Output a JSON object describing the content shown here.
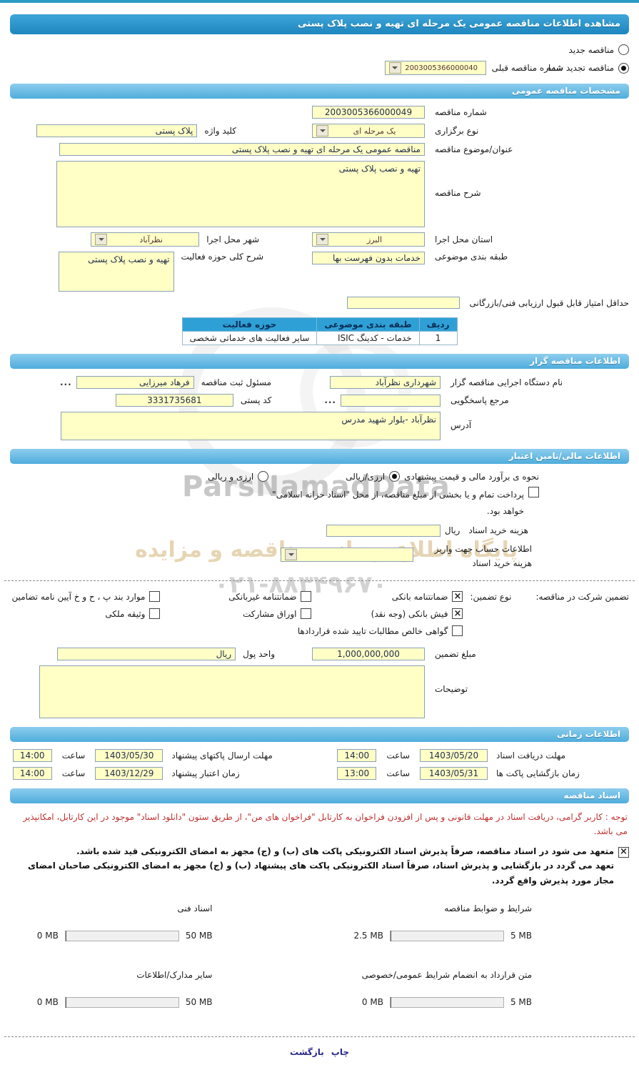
{
  "title": "مشاهده اطلاعات مناقصه عمومی یک مرحله ای تهیه و نصب پلاک پستی",
  "watermark": {
    "brand": "ParsNamadData",
    "line1": "پایگاه اطلاع رسانی مناقصه و مزایده",
    "phone": "۰۲۱-۸۸۳۴۹۶۷۰"
  },
  "top": {
    "new_label": "مناقصه جدید",
    "new_selected": false,
    "renewed_label": "مناقصه تجدید شده",
    "renewed_selected": true,
    "prev_number_label": "شماره مناقصه قبلی",
    "prev_number_value": "2003005366000040"
  },
  "sections": {
    "general": "مشخصات مناقصه عمومی",
    "tenderer": "اطلاعات مناقصه گزار",
    "financial": "اطلاعات مالی/تامین اعتبار",
    "timing": "اطلاعات زمانی",
    "documents": "اسناد مناقصه"
  },
  "general": {
    "tender_number_label": "شماره مناقصه",
    "tender_number_value": "2003005366000049",
    "holding_type_label": "نوع برگزاری",
    "holding_type_value": "یک مرحله ای",
    "keyword_label": "کلید واژه",
    "keyword_value": "پلاک پستی",
    "subject_label": "عنوان/موضوع مناقصه",
    "subject_value": "مناقصه عمومی یک مرحله ای تهیه و نصب پلاک پستی",
    "desc_label": "شرح مناقصه",
    "desc_value": "تهیه و نصب پلاک پستی",
    "province_label": "استان محل اجرا",
    "province_value": "البرز",
    "city_label": "شهر محل اجرا",
    "city_value": "نظرآباد",
    "category_label": "طبقه بندی موضوعی",
    "category_value": "خدمات بدون فهرست بها",
    "activity_label": "شرح کلی حوزه فعالیت",
    "activity_value": "تهیه و نصب پلاک پستی",
    "min_score_label": "حداقل امتیاز قابل قبول ارزیابی فنی/بازرگانی",
    "min_score_value": "",
    "table": {
      "headers": [
        "ردیف",
        "طبقه بندی موضوعی",
        "حوزه فعالیت"
      ],
      "rows": [
        [
          "1",
          "خدمات - کدینگ ISIC",
          "سایر فعالیت های خدماتی شخصی"
        ]
      ]
    }
  },
  "tenderer": {
    "agency_label": "نام دستگاه اجرایی مناقصه گزار",
    "agency_value": "شهرداری نظرآباد",
    "registrar_label": "مسئول ثبت مناقصه",
    "registrar_value": "فرهاد  میرزایی",
    "ellipsis": "...",
    "contact_label": "مرجع پاسخگویی",
    "contact_value": "",
    "postal_label": "کد پستی",
    "postal_value": "3331735681",
    "address_label": "آدرس",
    "address_value": "نظرآباد -بلوار شهید مدرس"
  },
  "financial": {
    "estimate_label": "نحوه ی برآورد مالی و قیمت پیشنهادی",
    "rial_option": "ارزی/ریالی",
    "rial_selected": true,
    "currency_option": "ارزی و ریالی",
    "currency_selected": false,
    "treasury_label": "پرداخت تمام و یا بخشی از مبلغ مناقصه، از محل \"اسناد خزانه اسلامی\" خواهد بود.",
    "treasury_checked": false,
    "doc_fee_label": "هزینه خرید اسناد",
    "doc_fee_unit": "ریال",
    "doc_fee_value": "",
    "account_label": "اطلاعات حساب جهت واریز هزینه خرید اسناد",
    "account_value": ""
  },
  "guarantee": {
    "title": "تضمین شرکت در مناقصه:",
    "type_label": "نوع تضمین:",
    "options": [
      {
        "label": "ضمانتنامه بانکی",
        "checked": true
      },
      {
        "label": "ضمانتنامه غیربانکی",
        "checked": false
      },
      {
        "label": "موارد بند پ ، ح و خ آیین نامه تضامین",
        "checked": false
      },
      {
        "label": "فیش بانکی (وجه نقد)",
        "checked": true
      },
      {
        "label": "اوراق مشارکت",
        "checked": false
      },
      {
        "label": "وثیقه ملکی",
        "checked": false
      },
      {
        "label": "گواهی خالص مطالبات تایید شده قراردادها",
        "checked": false
      }
    ],
    "amount_label": "مبلغ تضمین",
    "amount_value": "1,000,000,000",
    "currency_label": "واحد پول",
    "currency_value": "ریال",
    "notes_label": "توضیحات",
    "notes_value": ""
  },
  "timing": {
    "hour_label": "ساعت",
    "rows": [
      {
        "label_r": "مهلت دریافت اسناد",
        "date_r": "1403/05/20",
        "time_r": "14:00",
        "label_l": "مهلت ارسال پاکتهای پیشنهاد",
        "date_l": "1403/05/30",
        "time_l": "14:00"
      },
      {
        "label_r": "زمان بازگشایی پاکت ها",
        "date_r": "1403/05/31",
        "time_r": "13:00",
        "label_l": "زمان اعتبار پیشنهاد",
        "date_l": "1403/12/29",
        "time_l": "14:00"
      }
    ]
  },
  "documents": {
    "note": "توجه : کاربر گرامی، دریافت اسناد در مهلت قانونی و پس از افزودن فراخوان به کارتابل \"فراخوان های من\"، از طریق ستون \"دانلود اسناد\" موجود در این کارتابل، امکانپذیر می باشد.",
    "commitment_checked": true,
    "commitment_line1": "متعهد می شود در اسناد مناقصه، صرفاً پذیرش اسناد الکترونیکی پاکت های (ب) و (ج) مجهز به امضای الکترونیکی قید شده باشد.",
    "commitment_line2": "تعهد می گردد در بازگشایی و پذیرش اسناد، صرفاً اسناد الکترونیکی پاکت های پیشنهاد (ب) و (ج) مجهز به امضای الکترونیکی صاحبان امضای مجاز مورد پذیرش واقع گردد.",
    "uploads": [
      {
        "label": "شرایط و ضوابط مناقصه",
        "current": "2.5 MB",
        "max": "5 MB",
        "percent": 50
      },
      {
        "label": "اسناد فنی",
        "current": "0 MB",
        "max": "50 MB",
        "percent": 0
      },
      {
        "label": "متن قرارداد به انضمام شرایط عمومی/خصوصی",
        "current": "0 MB",
        "max": "5 MB",
        "percent": 0
      },
      {
        "label": "سایر مدارک/اطلاعات",
        "current": "0 MB",
        "max": "50 MB",
        "percent": 0
      }
    ]
  },
  "footer": {
    "print_label": "چاپ",
    "back_label": "بازگشت"
  }
}
